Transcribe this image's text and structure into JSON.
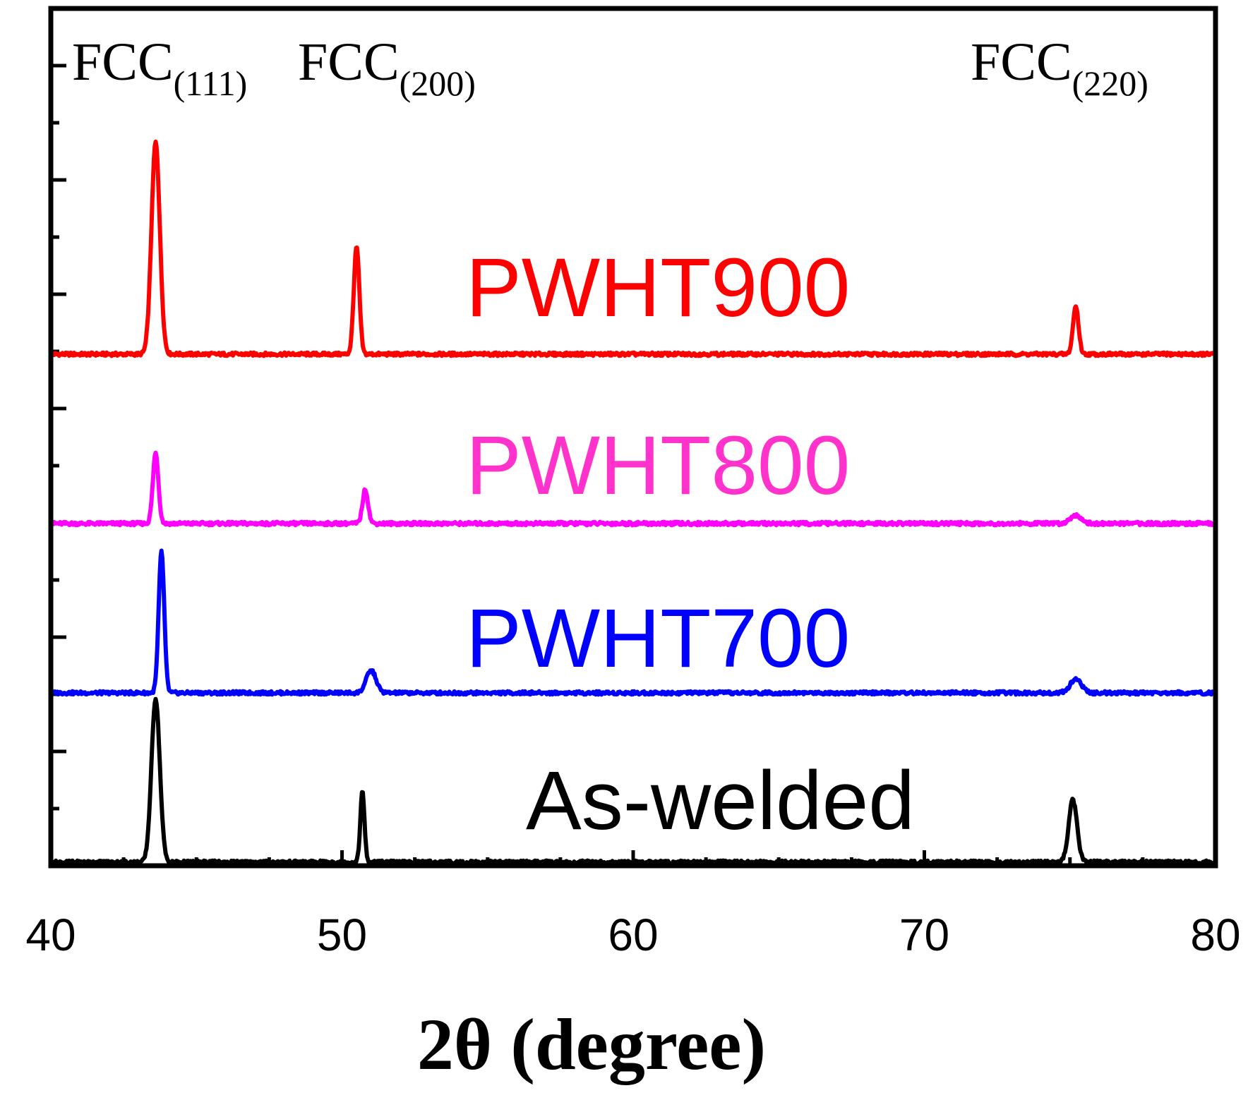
{
  "chart_data": {
    "type": "line",
    "title": "",
    "xlabel": "2θ (degree)",
    "ylabel": "",
    "xlim": [
      40,
      80
    ],
    "x_ticks": [
      40,
      50,
      60,
      70,
      80
    ],
    "y_ticks_visible": true,
    "grid": false,
    "legend": "inline labels",
    "peak_annotations": [
      {
        "base": "FCC",
        "sub": "(111)",
        "x": 43.6
      },
      {
        "base": "FCC",
        "sub": "(200)",
        "x": 50.8
      },
      {
        "base": "FCC",
        "sub": "(220)",
        "x": 75.2
      }
    ],
    "series": [
      {
        "name": "PWHT900",
        "color": "#ff0000",
        "offset": 1.8,
        "peaks": [
          {
            "x": 43.6,
            "height": 0.75,
            "width": 0.3
          },
          {
            "x": 50.5,
            "height": 0.38,
            "width": 0.2
          },
          {
            "x": 75.2,
            "height": 0.17,
            "width": 0.2
          }
        ]
      },
      {
        "name": "PWHT800",
        "color": "#ff00ff",
        "label_color": "#ff33cc",
        "offset": 1.2,
        "peaks": [
          {
            "x": 43.6,
            "height": 0.25,
            "width": 0.2
          },
          {
            "x": 50.8,
            "height": 0.12,
            "width": 0.2
          },
          {
            "x": 75.2,
            "height": 0.03,
            "width": 0.4
          }
        ]
      },
      {
        "name": "PWHT700",
        "color": "#0000ff",
        "offset": 0.6,
        "peaks": [
          {
            "x": 43.8,
            "height": 0.5,
            "width": 0.2
          },
          {
            "x": 51.0,
            "height": 0.08,
            "width": 0.35
          },
          {
            "x": 75.2,
            "height": 0.05,
            "width": 0.4
          }
        ]
      },
      {
        "name": "As-welded",
        "color": "#000000",
        "offset": 0.0,
        "peaks": [
          {
            "x": 43.6,
            "height": 0.58,
            "width": 0.3
          },
          {
            "x": 50.7,
            "height": 0.25,
            "width": 0.15
          },
          {
            "x": 75.1,
            "height": 0.22,
            "width": 0.3
          }
        ]
      }
    ]
  }
}
